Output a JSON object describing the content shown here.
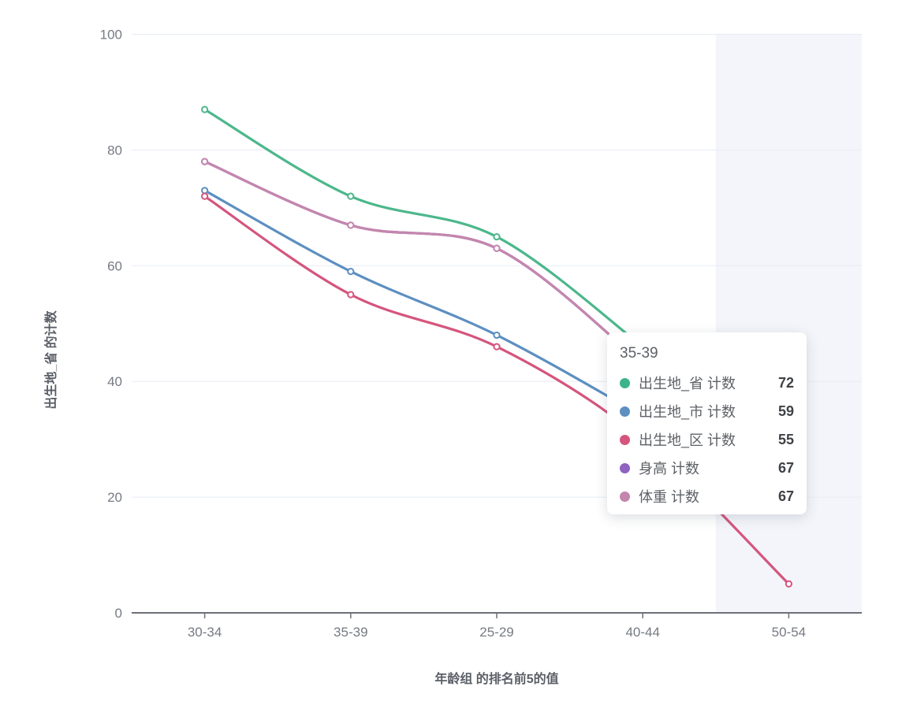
{
  "chart_data": {
    "type": "line",
    "smooth": true,
    "categories": [
      "30-34",
      "35-39",
      "25-29",
      "40-44",
      "50-54"
    ],
    "series": [
      {
        "name": "出生地_省 计数",
        "color": "#4db78c",
        "values": [
          87,
          72,
          65,
          46,
          null
        ]
      },
      {
        "name": "出生地_市 计数",
        "color": "#5d8fc1",
        "values": [
          73,
          59,
          48,
          34,
          null
        ]
      },
      {
        "name": "出生地_区 计数",
        "color": "#d5557d",
        "values": [
          72,
          55,
          46,
          30,
          5
        ]
      },
      {
        "name": "身高 计数",
        "color": "#8f63c0",
        "values": [
          78,
          67,
          63,
          43,
          null
        ]
      },
      {
        "name": "体重 计数",
        "color": "#c486ad",
        "values": [
          78,
          67,
          63,
          43,
          null
        ]
      }
    ],
    "xlabel": "年龄组 的排名前5的值",
    "ylabel": "出生地_省 的计数",
    "ylim": [
      0,
      100
    ],
    "yticks": [
      0,
      20,
      40,
      60,
      80,
      100
    ],
    "grid": true,
    "legend_position": "none",
    "highlight_band_category": "50-54",
    "highlight_band_color": "#f3f5fa",
    "gridline_color": "#e7ecf3",
    "axis_line_color": "#6e7079",
    "tick_label_color": "#767a83"
  },
  "tooltip": {
    "title": "35-39",
    "rows": [
      {
        "label": "出生地_省 计数",
        "value": "72",
        "color": "#3cb389"
      },
      {
        "label": "出生地_市 计数",
        "value": "59",
        "color": "#5d8fc1"
      },
      {
        "label": "出生地_区 计数",
        "value": "55",
        "color": "#d5557d"
      },
      {
        "label": "身高 计数",
        "value": "67",
        "color": "#8f63c0"
      },
      {
        "label": "体重 计数",
        "value": "67",
        "color": "#c486ad"
      }
    ]
  }
}
